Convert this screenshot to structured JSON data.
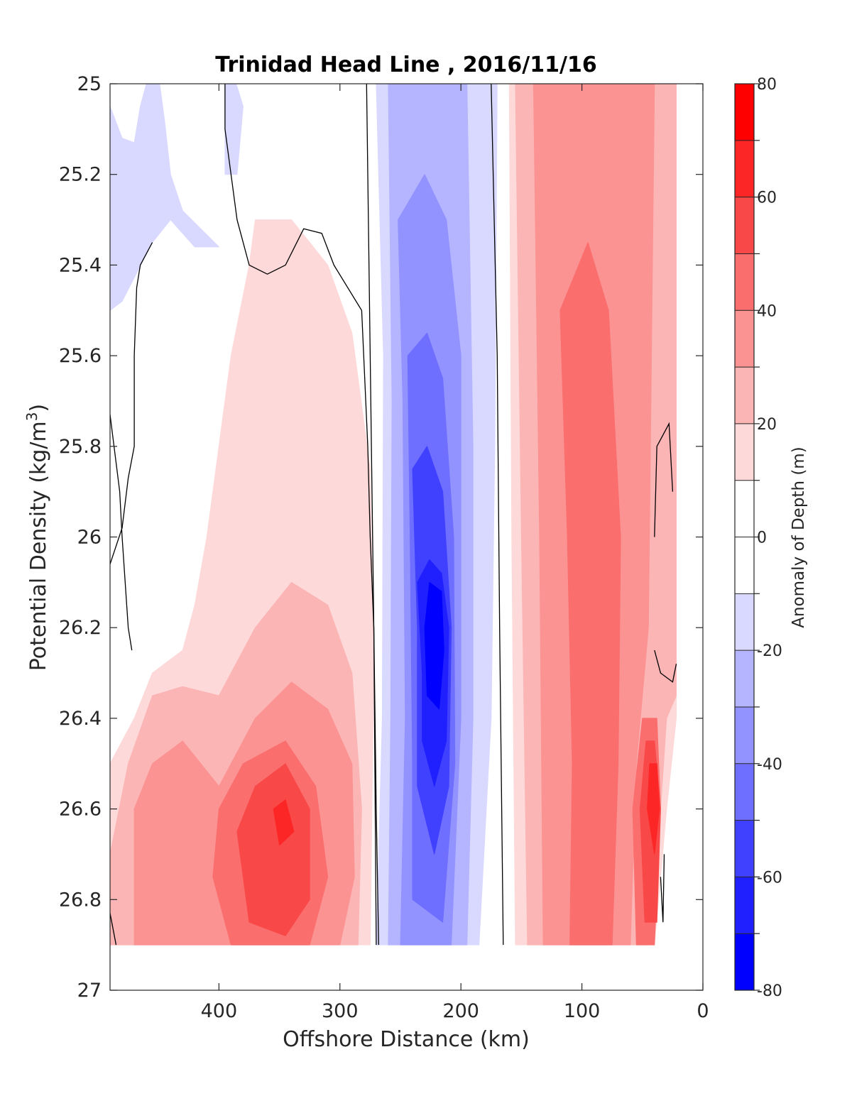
{
  "chart_data": {
    "type": "heatmap",
    "title": "Trinidad Head Line , 2016/11/16",
    "xlabel": "Offshore Distance (km)",
    "ylabel_main": "Potential Density (kg/m",
    "ylabel_sup": "3",
    "ylabel_tail": ")",
    "xlim": [
      490,
      0
    ],
    "x_reversed": true,
    "ylim": [
      25,
      27
    ],
    "y_reversed": true,
    "x_ticks": [
      "400",
      "300",
      "200",
      "100",
      "0"
    ],
    "x_tick_values": [
      400,
      300,
      200,
      100,
      0
    ],
    "y_ticks": [
      "25",
      "25.2",
      "25.4",
      "25.6",
      "25.8",
      "26",
      "26.2",
      "26.4",
      "26.6",
      "26.8",
      "27"
    ],
    "y_tick_values": [
      25,
      25.2,
      25.4,
      25.6,
      25.8,
      26,
      26.2,
      26.4,
      26.6,
      26.8,
      27
    ],
    "data_y_range": [
      25,
      26.9
    ],
    "colorbar": {
      "label": "Anomaly of Depth (m)",
      "range": [
        -80,
        80
      ],
      "ticks": [
        "-80",
        "-60",
        "-40",
        "-20",
        "0",
        "20",
        "40",
        "60",
        "80"
      ],
      "tick_values": [
        -80,
        -60,
        -40,
        -20,
        0,
        20,
        40,
        60,
        80
      ],
      "level_step": 10,
      "colors": [
        "#0000ff",
        "#2020ff",
        "#4040ff",
        "#6e6eff",
        "#9393ff",
        "#b5b5ff",
        "#d9d9ff",
        "#ffffff",
        "#ffffff",
        "#fdd9d9",
        "#fcb5b5",
        "#fb9393",
        "#fa6e6e",
        "#f94848",
        "#fd2626",
        "#ff0000"
      ]
    },
    "regions": [
      {
        "level": -10,
        "points": [
          [
            490,
            25.05
          ],
          [
            480,
            25.12
          ],
          [
            470,
            25.13
          ],
          [
            465,
            25.05
          ],
          [
            460,
            25.0
          ],
          [
            450,
            24.98
          ],
          [
            445,
            25.08
          ],
          [
            440,
            25.2
          ],
          [
            430,
            25.28
          ],
          [
            400,
            25.36
          ],
          [
            420,
            25.36
          ],
          [
            440,
            25.3
          ],
          [
            455,
            25.35
          ],
          [
            480,
            25.48
          ],
          [
            490,
            25.5
          ]
        ]
      },
      {
        "level": -10,
        "points": [
          [
            395,
            25.0
          ],
          [
            395,
            25.2
          ],
          [
            385,
            25.2
          ],
          [
            380,
            25.05
          ],
          [
            388,
            24.98
          ]
        ]
      },
      {
        "level": -10,
        "points": [
          [
            270,
            25.0
          ],
          [
            264,
            25.6
          ],
          [
            265,
            26.4
          ],
          [
            270,
            26.9
          ],
          [
            185,
            26.9
          ],
          [
            175,
            26.4
          ],
          [
            172,
            25.8
          ],
          [
            170,
            25.0
          ]
        ]
      },
      {
        "level": -20,
        "points": [
          [
            260,
            25.0
          ],
          [
            257,
            25.7
          ],
          [
            258,
            26.4
          ],
          [
            260,
            26.9
          ],
          [
            195,
            26.9
          ],
          [
            190,
            26.4
          ],
          [
            190,
            25.8
          ],
          [
            195,
            25.0
          ]
        ]
      },
      {
        "level": -30,
        "points": [
          [
            252,
            25.3
          ],
          [
            248,
            25.7
          ],
          [
            246,
            26.4
          ],
          [
            250,
            26.9
          ],
          [
            208,
            26.9
          ],
          [
            200,
            26.4
          ],
          [
            200,
            25.6
          ],
          [
            212,
            25.3
          ],
          [
            230,
            25.2
          ]
        ]
      },
      {
        "level": -40,
        "points": [
          [
            244,
            25.6
          ],
          [
            242,
            26.0
          ],
          [
            240,
            26.5
          ],
          [
            240,
            26.8
          ],
          [
            215,
            26.85
          ],
          [
            205,
            26.5
          ],
          [
            206,
            26.0
          ],
          [
            215,
            25.65
          ],
          [
            228,
            25.55
          ]
        ]
      },
      {
        "level": -50,
        "points": [
          [
            240,
            25.85
          ],
          [
            236,
            26.2
          ],
          [
            236,
            26.55
          ],
          [
            222,
            26.7
          ],
          [
            210,
            26.55
          ],
          [
            208,
            26.2
          ],
          [
            215,
            25.9
          ],
          [
            228,
            25.8
          ]
        ]
      },
      {
        "level": -60,
        "points": [
          [
            236,
            26.1
          ],
          [
            232,
            26.3
          ],
          [
            232,
            26.45
          ],
          [
            222,
            26.55
          ],
          [
            212,
            26.45
          ],
          [
            210,
            26.2
          ],
          [
            216,
            26.08
          ],
          [
            226,
            26.05
          ]
        ]
      },
      {
        "level": -70,
        "points": [
          [
            226,
            26.1
          ],
          [
            230,
            26.2
          ],
          [
            228,
            26.35
          ],
          [
            218,
            26.38
          ],
          [
            214,
            26.25
          ],
          [
            216,
            26.12
          ]
        ]
      },
      {
        "level": 10,
        "points": [
          [
            490,
            26.5
          ],
          [
            470,
            26.4
          ],
          [
            455,
            26.3
          ],
          [
            430,
            26.25
          ],
          [
            420,
            26.15
          ],
          [
            410,
            26.0
          ],
          [
            390,
            25.6
          ],
          [
            375,
            25.4
          ],
          [
            370,
            25.3
          ],
          [
            340,
            25.3
          ],
          [
            310,
            25.4
          ],
          [
            290,
            25.55
          ],
          [
            275,
            25.85
          ],
          [
            272,
            26.3
          ],
          [
            275,
            26.9
          ],
          [
            490,
            26.9
          ]
        ]
      },
      {
        "level": 10,
        "points": [
          [
            160,
            25.0
          ],
          [
            158,
            26.0
          ],
          [
            155,
            26.9
          ],
          [
            40,
            26.9
          ],
          [
            30,
            26.6
          ],
          [
            22,
            26.4
          ],
          [
            22,
            25.0
          ]
        ]
      },
      {
        "level": 20,
        "points": [
          [
            490,
            26.7
          ],
          [
            475,
            26.5
          ],
          [
            455,
            26.35
          ],
          [
            430,
            26.33
          ],
          [
            400,
            26.35
          ],
          [
            370,
            26.2
          ],
          [
            340,
            26.1
          ],
          [
            310,
            26.15
          ],
          [
            290,
            26.3
          ],
          [
            282,
            26.6
          ],
          [
            285,
            26.9
          ],
          [
            490,
            26.9
          ]
        ]
      },
      {
        "level": 20,
        "points": [
          [
            155,
            25.0
          ],
          [
            150,
            26.0
          ],
          [
            145,
            26.9
          ],
          [
            45,
            26.9
          ],
          [
            35,
            26.6
          ],
          [
            30,
            26.4
          ],
          [
            22,
            26.35
          ],
          [
            22,
            25.0
          ]
        ]
      },
      {
        "level": 30,
        "points": [
          [
            470,
            26.6
          ],
          [
            455,
            26.5
          ],
          [
            430,
            26.45
          ],
          [
            400,
            26.55
          ],
          [
            370,
            26.4
          ],
          [
            340,
            26.32
          ],
          [
            310,
            26.38
          ],
          [
            290,
            26.5
          ],
          [
            288,
            26.75
          ],
          [
            300,
            26.9
          ],
          [
            470,
            26.9
          ]
        ]
      },
      {
        "level": 30,
        "points": [
          [
            140,
            25.0
          ],
          [
            135,
            26.0
          ],
          [
            132,
            26.9
          ],
          [
            60,
            26.9
          ],
          [
            55,
            26.5
          ],
          [
            45,
            26.2
          ],
          [
            40,
            25.0
          ]
        ]
      },
      {
        "level": 40,
        "points": [
          [
            400,
            26.6
          ],
          [
            380,
            26.5
          ],
          [
            345,
            26.45
          ],
          [
            320,
            26.55
          ],
          [
            310,
            26.75
          ],
          [
            325,
            26.9
          ],
          [
            390,
            26.9
          ],
          [
            405,
            26.75
          ]
        ]
      },
      {
        "level": 40,
        "points": [
          [
            118,
            25.5
          ],
          [
            112,
            26.0
          ],
          [
            108,
            26.5
          ],
          [
            110,
            26.9
          ],
          [
            75,
            26.9
          ],
          [
            70,
            26.5
          ],
          [
            68,
            26.0
          ],
          [
            78,
            25.5
          ],
          [
            95,
            25.35
          ]
        ]
      },
      {
        "level": 40,
        "points": [
          [
            50,
            26.4
          ],
          [
            58,
            26.6
          ],
          [
            55,
            26.9
          ],
          [
            40,
            26.9
          ],
          [
            35,
            26.6
          ],
          [
            38,
            26.4
          ]
        ]
      },
      {
        "level": 50,
        "points": [
          [
            385,
            26.65
          ],
          [
            370,
            26.55
          ],
          [
            345,
            26.5
          ],
          [
            325,
            26.6
          ],
          [
            325,
            26.8
          ],
          [
            345,
            26.88
          ],
          [
            375,
            26.85
          ]
        ]
      },
      {
        "level": 50,
        "points": [
          [
            47,
            26.45
          ],
          [
            52,
            26.6
          ],
          [
            48,
            26.85
          ],
          [
            38,
            26.85
          ],
          [
            35,
            26.6
          ],
          [
            40,
            26.45
          ]
        ]
      },
      {
        "level": 60,
        "points": [
          [
            355,
            26.6
          ],
          [
            345,
            26.58
          ],
          [
            338,
            26.65
          ],
          [
            350,
            26.68
          ]
        ]
      },
      {
        "level": 60,
        "points": [
          [
            44,
            26.5
          ],
          [
            46,
            26.6
          ],
          [
            40,
            26.7
          ],
          [
            36,
            26.6
          ],
          [
            38,
            26.5
          ]
        ]
      }
    ],
    "zero_contours": [
      [
        [
          395,
          25.0
        ],
        [
          395,
          25.1
        ],
        [
          385,
          25.3
        ],
        [
          375,
          25.4
        ],
        [
          360,
          25.42
        ],
        [
          345,
          25.4
        ],
        [
          330,
          25.32
        ],
        [
          315,
          25.33
        ],
        [
          305,
          25.4
        ],
        [
          282,
          25.5
        ],
        [
          277,
          25.8
        ],
        [
          275,
          26.0
        ],
        [
          272,
          26.2
        ],
        [
          270,
          26.6
        ],
        [
          268,
          26.9
        ]
      ],
      [
        [
          278,
          25.0
        ],
        [
          275,
          25.6
        ],
        [
          272,
          26.2
        ],
        [
          270,
          26.9
        ]
      ],
      [
        [
          175,
          25.0
        ],
        [
          170,
          25.6
        ],
        [
          168,
          26.2
        ],
        [
          165,
          26.9
        ]
      ],
      [
        [
          490,
          25.73
        ],
        [
          482,
          25.9
        ],
        [
          480,
          26.0
        ],
        [
          475,
          26.2
        ],
        [
          472,
          26.25
        ]
      ],
      [
        [
          490,
          26.06
        ],
        [
          480,
          25.98
        ],
        [
          475,
          25.87
        ],
        [
          470,
          25.8
        ],
        [
          470,
          25.6
        ],
        [
          468,
          25.45
        ],
        [
          465,
          25.4
        ],
        [
          455,
          25.35
        ]
      ],
      [
        [
          40,
          26.0
        ],
        [
          38,
          25.8
        ],
        [
          28,
          25.75
        ],
        [
          25,
          25.9
        ]
      ],
      [
        [
          40,
          26.25
        ],
        [
          35,
          26.3
        ],
        [
          25,
          26.32
        ],
        [
          22,
          26.28
        ]
      ],
      [
        [
          35,
          26.75
        ],
        [
          33,
          26.85
        ],
        [
          32,
          26.7
        ]
      ],
      [
        [
          490,
          26.83
        ],
        [
          485,
          26.9
        ]
      ]
    ]
  }
}
